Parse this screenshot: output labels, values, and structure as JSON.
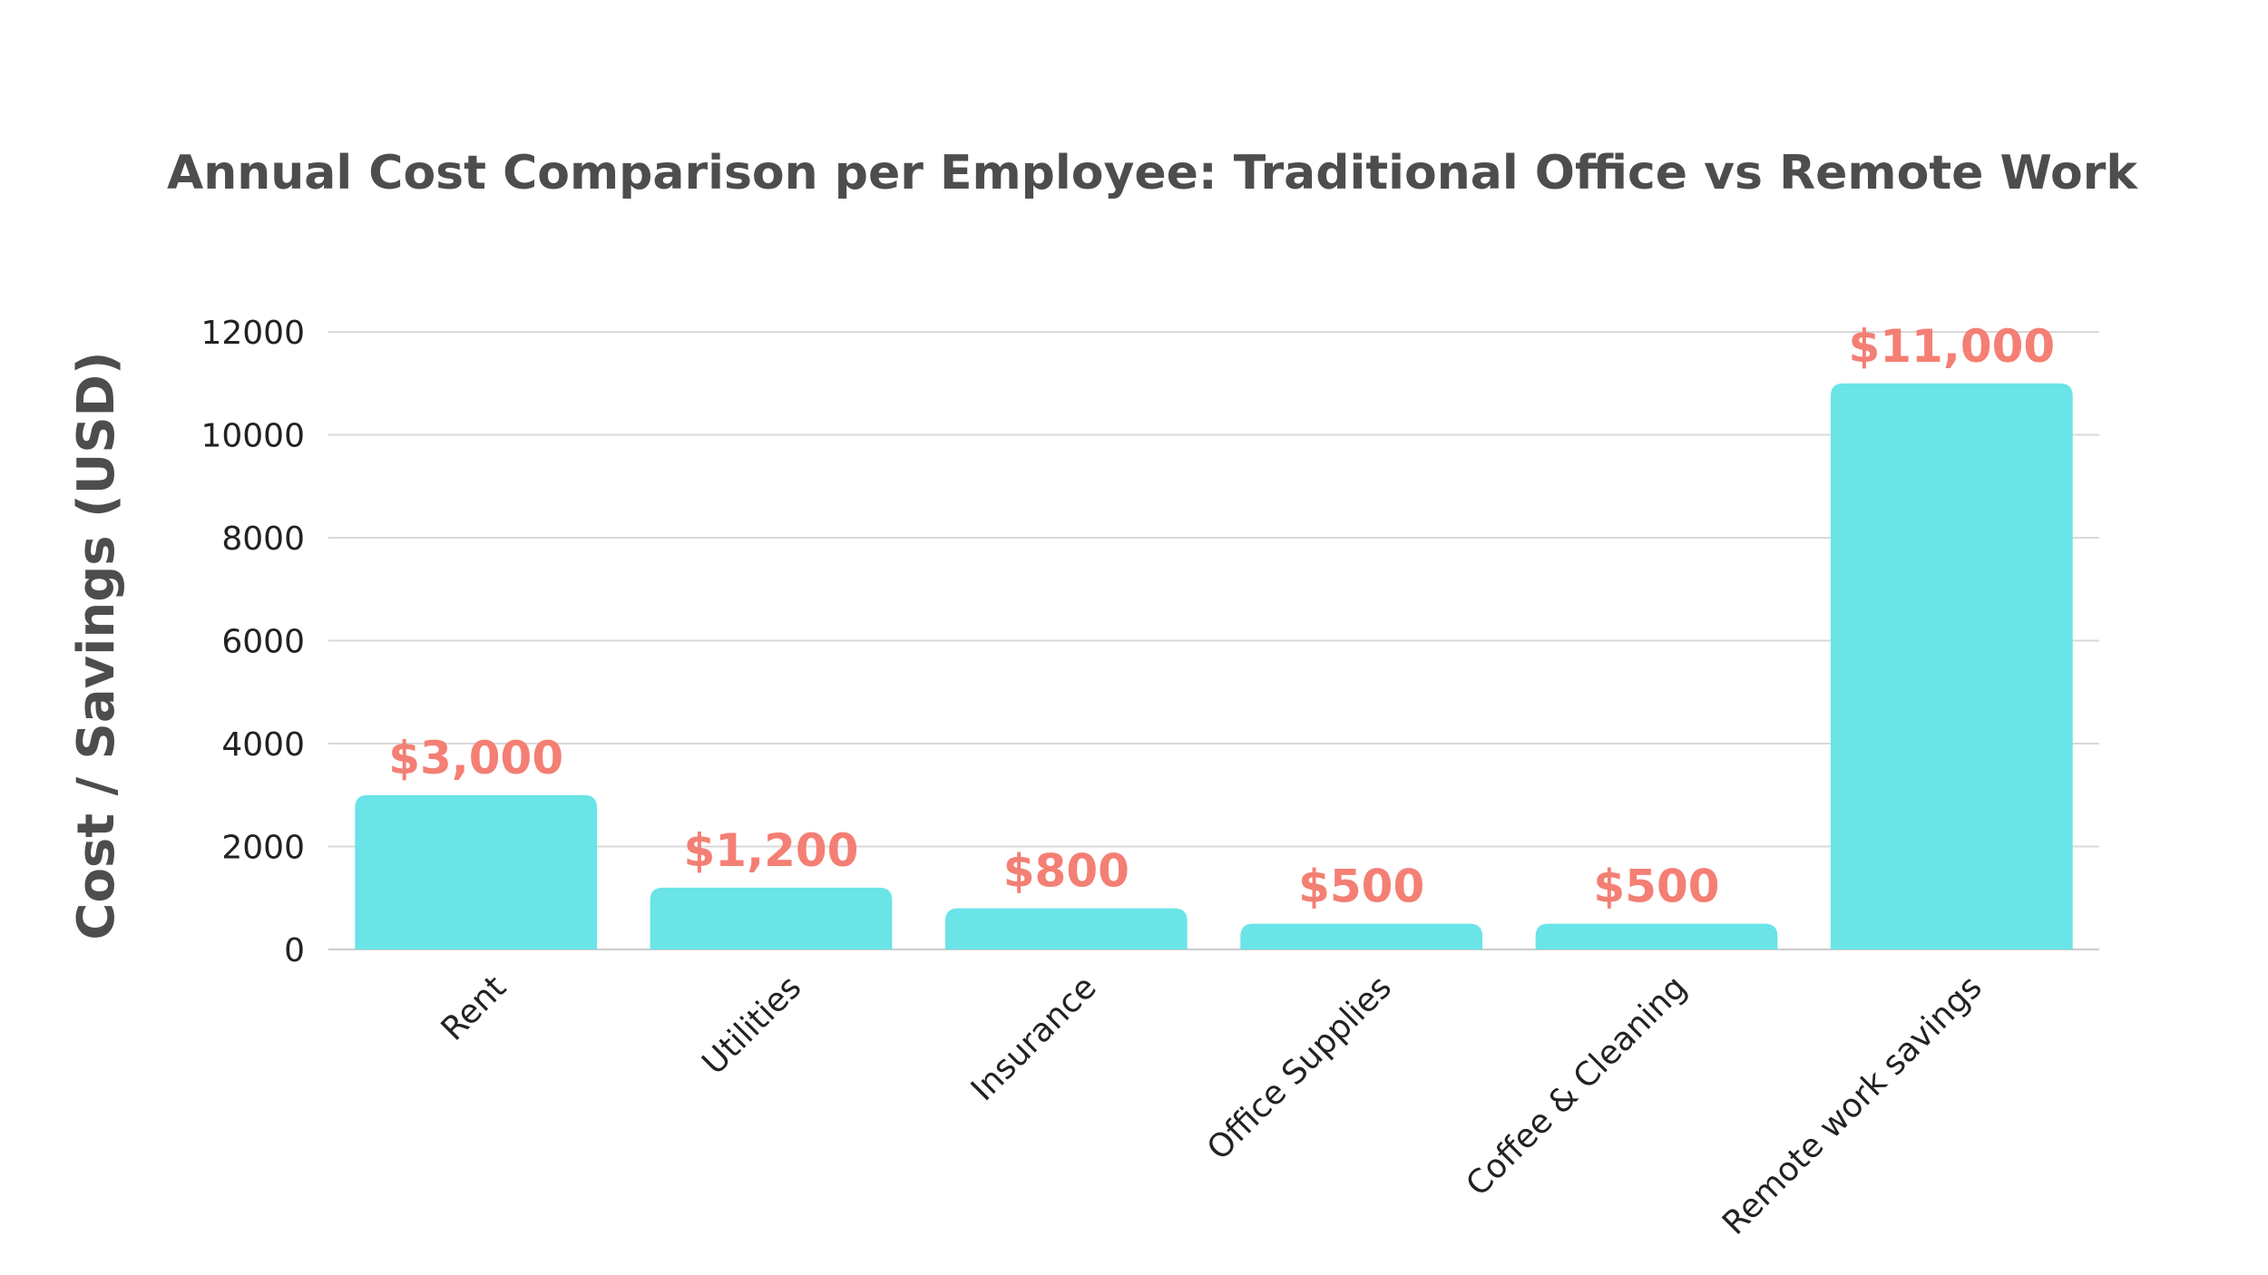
{
  "chart_data": {
    "type": "bar",
    "title": "Annual Cost Comparison per Employee: Traditional Office vs Remote Work",
    "xlabel": "",
    "ylabel": "Cost / Savings (USD)",
    "categories": [
      "Rent",
      "Utilities",
      "Insurance",
      "Office Supplies",
      "Coffee & Cleaning",
      "Remote work savings"
    ],
    "values": [
      3000,
      1200,
      800,
      500,
      500,
      11000
    ],
    "data_labels": [
      "$3,000",
      "$1,200",
      "$800",
      "$500",
      "$500",
      "$11,000"
    ],
    "y_ticks": [
      0,
      2000,
      4000,
      6000,
      8000,
      10000,
      12000
    ],
    "y_tick_labels": [
      "0",
      "2000",
      "4000",
      "6000",
      "8000",
      "10000",
      "12000"
    ],
    "ylim": [
      0,
      12000
    ],
    "grid": true,
    "legend": "none",
    "bar_color": "#6ae4e7",
    "label_color": "#f47f74"
  }
}
